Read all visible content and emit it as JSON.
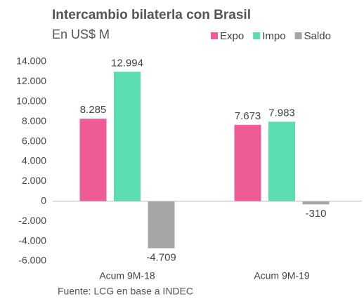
{
  "chart_data": {
    "type": "bar",
    "title": "Intercambio bilaterla con Brasil",
    "subtitle": "En US$ M",
    "categories": [
      "Acum 9M-18",
      "Acum 9M-19"
    ],
    "series": [
      {
        "name": "Expo",
        "color": "#ef5b94",
        "values": [
          8285,
          7673
        ],
        "value_labels": [
          "8.285",
          "7.673"
        ]
      },
      {
        "name": "Impo",
        "color": "#5cddb0",
        "values": [
          12994,
          7983
        ],
        "value_labels": [
          "12.994",
          "7.983"
        ]
      },
      {
        "name": "Saldo",
        "color": "#a6a6a6",
        "values": [
          -4709,
          -310
        ],
        "value_labels": [
          "-4.709",
          "-310"
        ]
      }
    ],
    "ylim": [
      -6000,
      14000
    ],
    "yticks": [
      {
        "value": -6000,
        "label": "-6.000"
      },
      {
        "value": -4000,
        "label": "-4.000"
      },
      {
        "value": -2000,
        "label": "-2.000"
      },
      0,
      {
        "value": 2000,
        "label": "2.000"
      },
      {
        "value": 4000,
        "label": "4.000"
      },
      {
        "value": 6000,
        "label": "6.000"
      },
      {
        "value": 8000,
        "label": "8.000"
      },
      {
        "value": 10000,
        "label": "10.000"
      },
      {
        "value": 12000,
        "label": "12.000"
      },
      {
        "value": 14000,
        "label": "14.000"
      }
    ],
    "grid": false,
    "legend": "top-right",
    "source": "Fuente: LCG en base a INDEC"
  }
}
